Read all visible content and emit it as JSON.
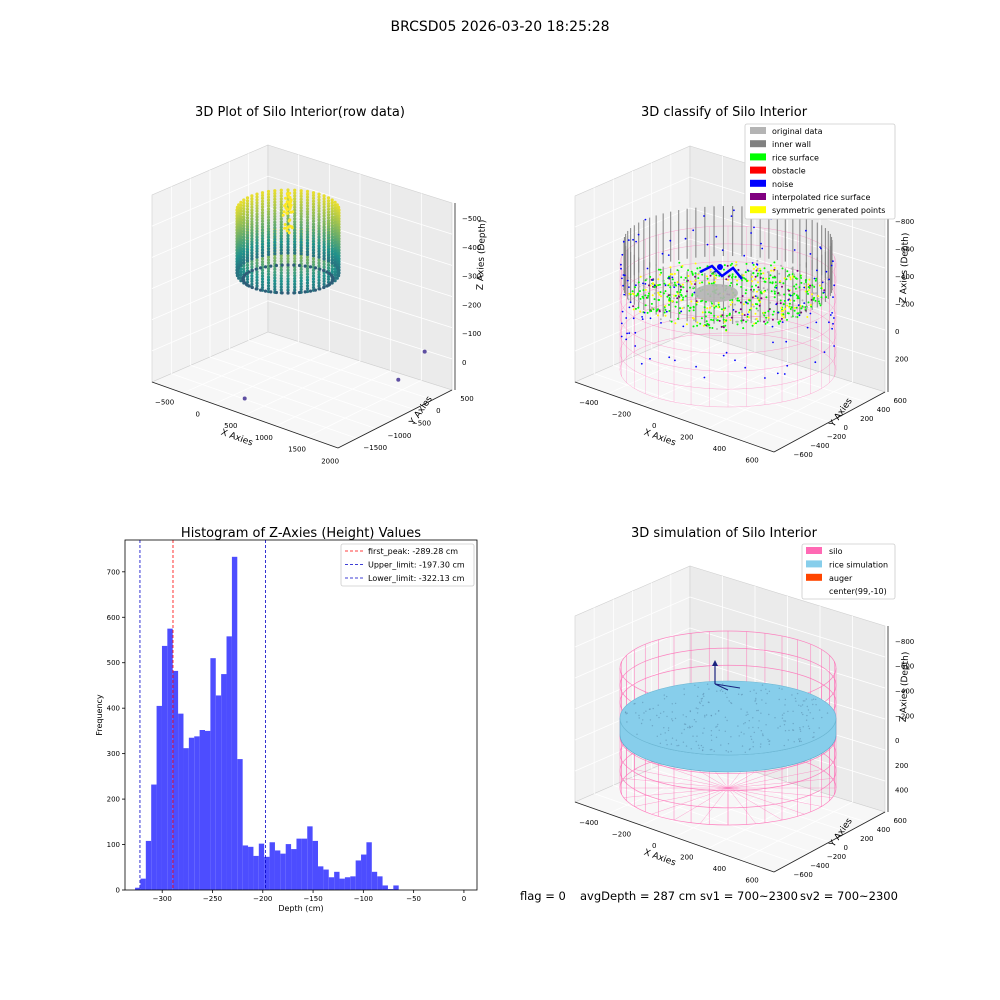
{
  "suptitle": "BRCSD05 2026-03-20 18:25:28",
  "footer": {
    "flag": "flag = 0",
    "avg": "avgDepth = 287 cm",
    "sv1": "sv1 = 700~2300",
    "sv2": "sv2 = 700~2300"
  },
  "colors": {
    "viridis_low": "#440154",
    "viridis_mid": "#21918c",
    "viridis_high": "#fde725",
    "original": "#b4b4b4",
    "inner_wall": "#808080",
    "rice_surface": "#00ff00",
    "obstacle": "#ff0000",
    "noise": "#0000ff",
    "interpolated": "#800080",
    "symmetric": "#ffff00",
    "silo": "#ff69b4",
    "rice_sim": "#87ceeb",
    "auger": "#ff4500",
    "hist_bar": "#4d4dff",
    "peak_line": "#ff0000",
    "limit_line": "#0000c8"
  },
  "chart_data": [
    {
      "type": "scatter",
      "projection": "3d",
      "title": "3D Plot of Silo Interior(row data)",
      "xlabel": "X Axies",
      "ylabel": "Y Axies",
      "zlabel": "Z Axies (Depth)",
      "xticks": [
        "−500",
        "0",
        "500",
        "1000",
        "1500",
        "2000"
      ],
      "yticks": [
        "−1500",
        "−1000",
        "−500",
        "0",
        "500"
      ],
      "zticks": [
        "−500",
        "−400",
        "−300",
        "−200",
        "−100",
        "0"
      ],
      "xlim": [
        -650,
        2050
      ],
      "ylim": [
        -1700,
        700
      ],
      "zlim": [
        -560,
        20
      ],
      "description_shape": "cylinder point cloud of silo wall, colored by depth (viridis)",
      "outliers": [
        [
          420,
          300,
          -560
        ],
        [
          1960,
          -700,
          -460
        ],
        [
          1930,
          -1300,
          -420
        ]
      ]
    },
    {
      "type": "scatter",
      "projection": "3d",
      "title": "3D classify of Silo Interior",
      "xlabel": "X Axies",
      "ylabel": "Y Axies",
      "zlabel": "Z Axies (Depth)",
      "xticks": [
        "−400",
        "−200",
        "0",
        "200",
        "400",
        "600"
      ],
      "yticks": [
        "−600",
        "−400",
        "−200",
        "0",
        "200",
        "400",
        "600"
      ],
      "zticks": [
        "−800",
        "−600",
        "−400",
        "−200",
        "0",
        "200"
      ],
      "legend_loc": "upper right",
      "legend": [
        {
          "label": "original data",
          "color": "#b4b4b4"
        },
        {
          "label": "inner wall",
          "color": "#808080"
        },
        {
          "label": "rice surface",
          "color": "#00ff00"
        },
        {
          "label": "obstacle",
          "color": "#ff0000"
        },
        {
          "label": "noise",
          "color": "#0000ff"
        },
        {
          "label": "interpolated rice surface",
          "color": "#800080"
        },
        {
          "label": "symmetric generated points",
          "color": "#ffff00"
        }
      ]
    },
    {
      "type": "bar",
      "title": "Histogram of Z-Axies (Height) Values",
      "xlabel": "Depth (cm)",
      "ylabel": "Frequency",
      "xlim": [
        -337,
        13
      ],
      "ylim": [
        0,
        770
      ],
      "xticks": [
        -300,
        -250,
        -200,
        -150,
        -100,
        -50,
        0
      ],
      "xtick_labels": [
        "−300",
        "−250",
        "−200",
        "−150",
        "−100",
        "−50",
        "0"
      ],
      "yticks": [
        0,
        100,
        200,
        300,
        400,
        500,
        600,
        700
      ],
      "bin_start": -327,
      "bin_width": 5.35,
      "values": [
        5,
        25,
        108,
        232,
        405,
        537,
        575,
        482,
        388,
        312,
        335,
        338,
        352,
        350,
        510,
        428,
        475,
        558,
        733,
        288,
        98,
        95,
        75,
        102,
        73,
        105,
        87,
        80,
        101,
        90,
        113,
        113,
        140,
        108,
        52,
        45,
        28,
        40,
        25,
        28,
        30,
        65,
        78,
        105,
        40,
        30,
        10,
        2,
        10
      ],
      "vlines": [
        {
          "x": -289.28,
          "label": "first_peak: -289.28 cm",
          "color": "#ff0000"
        },
        {
          "x": -197.3,
          "label": "Upper_limit: -197.30 cm",
          "color": "#0000c8"
        },
        {
          "x": -322.13,
          "label": "Lower_limit: -322.13 cm",
          "color": "#0000c8"
        }
      ],
      "legend_loc": "upper right"
    },
    {
      "type": "scatter",
      "projection": "3d",
      "title": "3D simulation of Silo Interior",
      "xlabel": "X Axies",
      "ylabel": "Y Axies",
      "zlabel": "Z Axies (Depth)",
      "xticks": [
        "−400",
        "−200",
        "0",
        "200",
        "400",
        "600"
      ],
      "yticks": [
        "−600",
        "−400",
        "−200",
        "0",
        "200",
        "400",
        "600"
      ],
      "zticks": [
        "−800",
        "−600",
        "−400",
        "−200",
        "0",
        "200",
        "400"
      ],
      "legend_loc": "upper right",
      "legend": [
        {
          "label": "silo",
          "color": "#ff69b4"
        },
        {
          "label": "rice simulation",
          "color": "#87ceeb"
        },
        {
          "label": "auger",
          "color": "#ff4500"
        },
        {
          "label": "center(99,-10)",
          "color": "none"
        }
      ]
    }
  ]
}
